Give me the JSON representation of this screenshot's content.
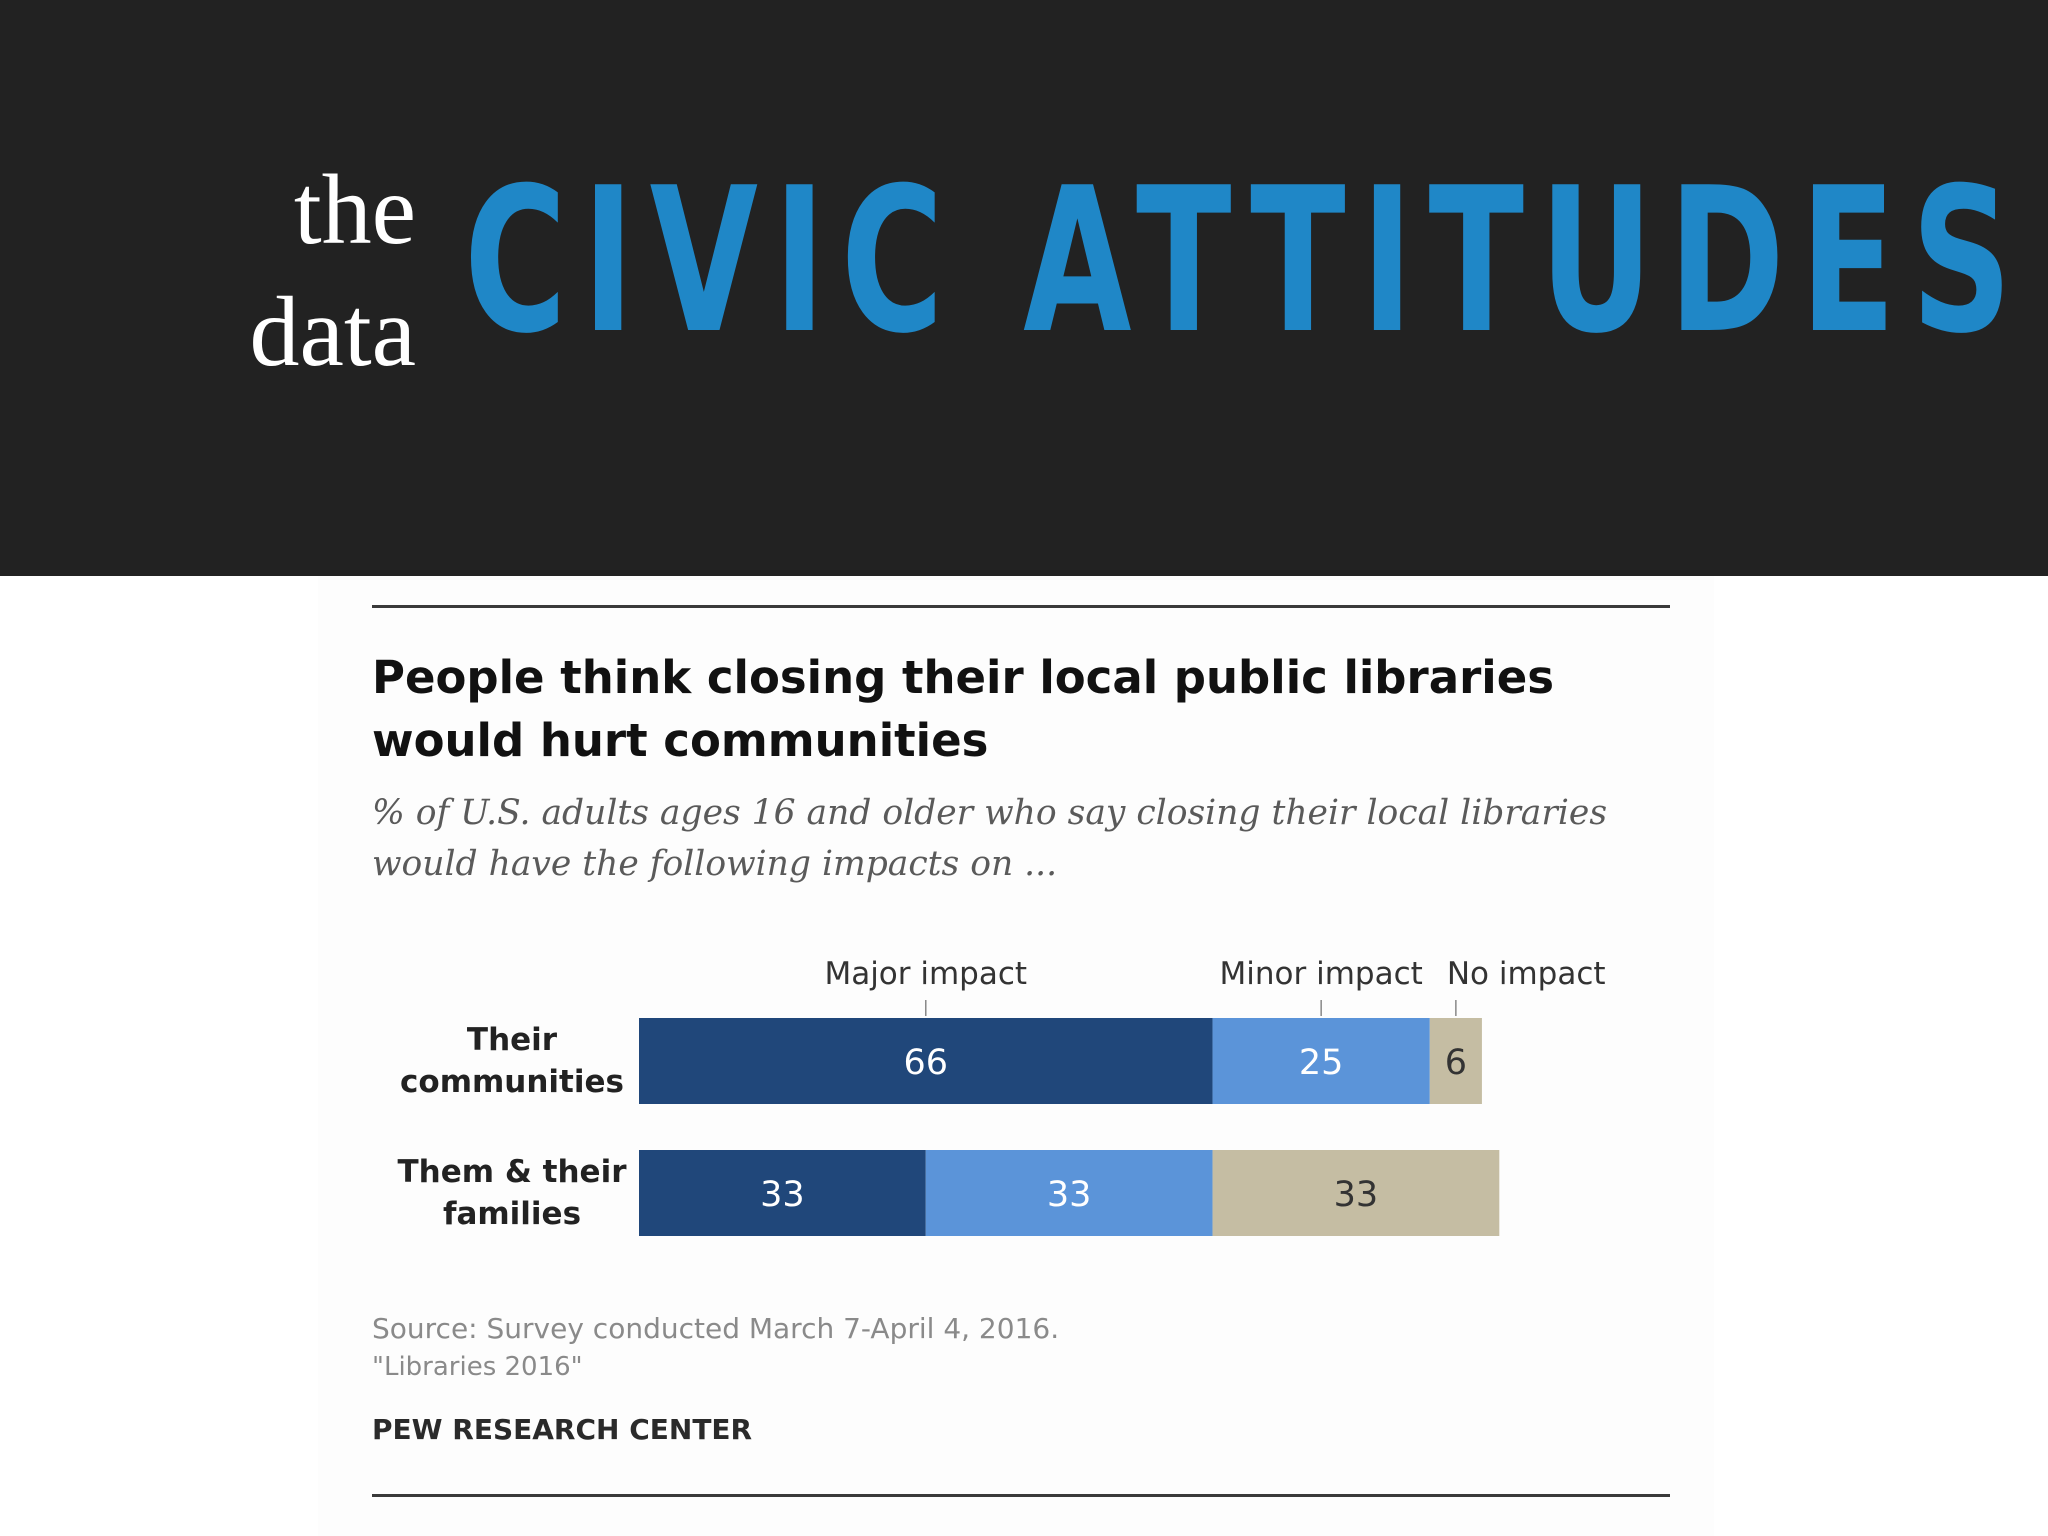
{
  "header": {
    "kicker_line1": "the",
    "kicker_line2": "data",
    "headline": "CIVIC ATTITUDES"
  },
  "chart_data": {
    "type": "bar",
    "orientation": "horizontal",
    "stacked": true,
    "title": "People think closing their local public libraries would hurt communities",
    "subtitle": "% of U.S. adults ages 16 and older who say closing their local libraries would have the following impacts on ...",
    "categories": [
      "Their communities",
      "Them & their families"
    ],
    "series": [
      {
        "name": "Major impact",
        "values": [
          66,
          33
        ],
        "color": "#20477a"
      },
      {
        "name": "Minor impact",
        "values": [
          25,
          33
        ],
        "color": "#5b94d9"
      },
      {
        "name": "No impact",
        "values": [
          6,
          33
        ],
        "color": "#c5bda3"
      }
    ],
    "legend_placement": "top",
    "xlim": [
      0,
      100
    ],
    "grid": false,
    "source": "Source: Survey conducted March 7-April 4, 2016.",
    "report": "\"Libraries 2016\"",
    "publisher": "PEW RESEARCH CENTER"
  },
  "colors": {
    "banner": "#222222",
    "headline": "#1f87c7",
    "label_on_dark": "#ffffff",
    "label_on_light": "#333333"
  }
}
